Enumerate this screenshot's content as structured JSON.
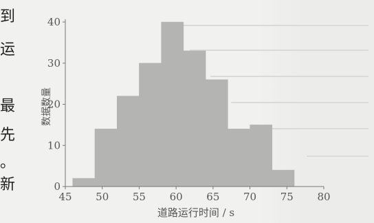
{
  "edge_text": [
    "到",
    "运",
    "最",
    "先",
    "。",
    "新"
  ],
  "chart_data": {
    "type": "bar",
    "title": "",
    "xlabel": "道路运行时间 / s",
    "ylabel": "数据数量",
    "xlim": [
      45,
      80
    ],
    "ylim": [
      0,
      40
    ],
    "xticks": [
      45,
      50,
      55,
      60,
      65,
      70,
      75,
      80
    ],
    "yticks": [
      0,
      10,
      20,
      30,
      40
    ],
    "bins": [
      {
        "x0": 46,
        "x1": 49,
        "value": 2
      },
      {
        "x0": 49,
        "x1": 52,
        "value": 14
      },
      {
        "x0": 52,
        "x1": 55,
        "value": 22
      },
      {
        "x0": 55,
        "x1": 58,
        "value": 30
      },
      {
        "x0": 58,
        "x1": 61,
        "value": 40
      },
      {
        "x0": 61,
        "x1": 64,
        "value": 33
      },
      {
        "x0": 64,
        "x1": 67,
        "value": 26
      },
      {
        "x0": 67,
        "x1": 70,
        "value": 14
      },
      {
        "x0": 70,
        "x1": 73,
        "value": 15
      },
      {
        "x0": 73,
        "x1": 76,
        "value": 4
      }
    ],
    "bar_color": "#b4b4b2",
    "grid": false,
    "legend": "none"
  }
}
